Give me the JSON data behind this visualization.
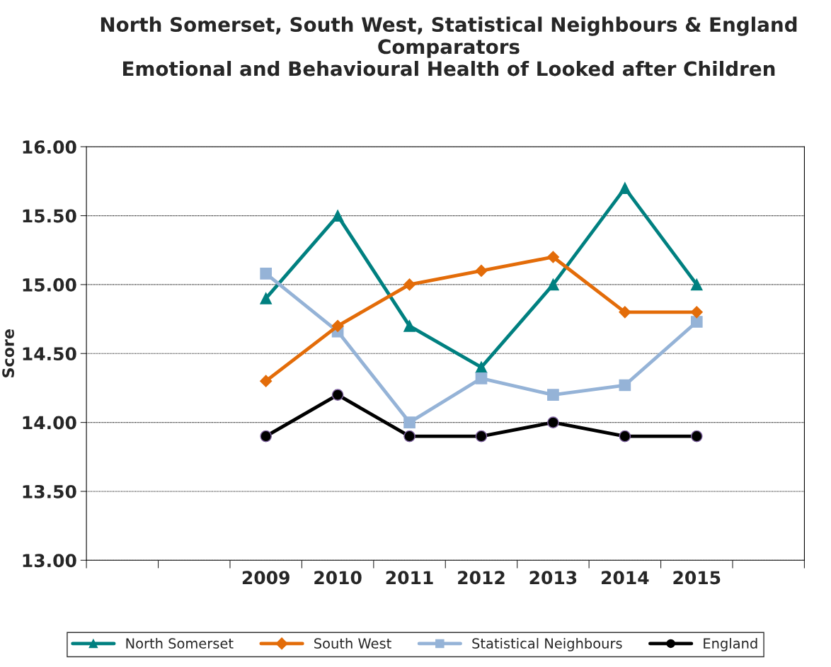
{
  "chart_data": {
    "type": "line",
    "title": "North Somerset, South West, Statistical Neighbours & England Comparators\nEmotional and Behavioural Health of Looked after Children",
    "ylabel": "Score",
    "categories": [
      null,
      null,
      "2009",
      "2010",
      "2011",
      "2012",
      "2013",
      "2014",
      "2015",
      null
    ],
    "series": [
      {
        "name": "North Somerset",
        "color": "#008080",
        "marker": "triangle",
        "values": [
          null,
          null,
          14.9,
          15.5,
          14.7,
          14.4,
          15.0,
          15.7,
          15.0,
          null
        ]
      },
      {
        "name": "South West",
        "color": "#e36c09",
        "marker": "diamond",
        "values": [
          null,
          null,
          14.3,
          14.7,
          15.0,
          15.1,
          15.2,
          14.8,
          14.8,
          null
        ]
      },
      {
        "name": "Statistical Neighbours",
        "color": "#95b3d7",
        "marker": "square",
        "values": [
          null,
          null,
          15.08,
          14.66,
          14.0,
          14.32,
          14.2,
          14.27,
          14.73,
          null
        ]
      },
      {
        "name": "England",
        "color": "#000000",
        "marker": "circle",
        "values": [
          null,
          null,
          13.9,
          14.2,
          13.9,
          13.9,
          14.0,
          13.9,
          13.9,
          null
        ]
      }
    ],
    "ylim": [
      13.0,
      16.0
    ],
    "yticks": [
      {
        "value": 13.0,
        "label": "13.00"
      },
      {
        "value": 13.5,
        "label": "13.50"
      },
      {
        "value": 14.0,
        "label": "14.00"
      },
      {
        "value": 14.5,
        "label": "14.50"
      },
      {
        "value": 15.0,
        "label": "15.00"
      },
      {
        "value": 15.5,
        "label": "15.50"
      },
      {
        "value": 16.0,
        "label": "16.00"
      }
    ],
    "grid": "y",
    "legend": "bottom",
    "line_style": "solid"
  }
}
